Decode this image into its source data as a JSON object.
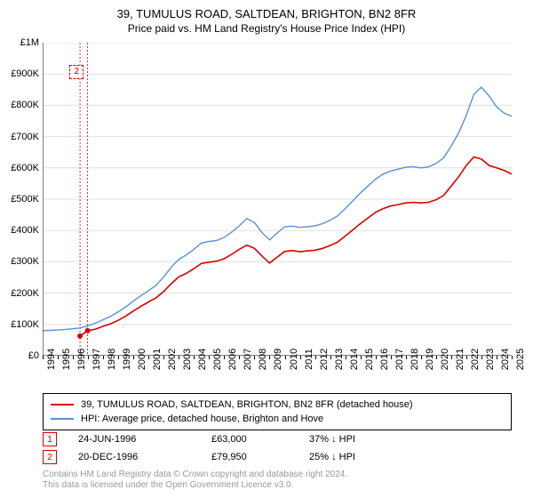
{
  "title": {
    "line1": "39, TUMULUS ROAD, SALTDEAN, BRIGHTON, BN2 8FR",
    "line2": "Price paid vs. HM Land Registry's House Price Index (HPI)"
  },
  "chart": {
    "type": "line",
    "background_color": "#ffffff",
    "grid_color": "#e0e0e0",
    "y": {
      "min": 0,
      "max": 1000000,
      "step": 100000,
      "ticks": [
        {
          "v": 0,
          "label": "£0"
        },
        {
          "v": 100000,
          "label": "£100K"
        },
        {
          "v": 200000,
          "label": "£200K"
        },
        {
          "v": 300000,
          "label": "£300K"
        },
        {
          "v": 400000,
          "label": "£400K"
        },
        {
          "v": 500000,
          "label": "£500K"
        },
        {
          "v": 600000,
          "label": "£600K"
        },
        {
          "v": 700000,
          "label": "£700K"
        },
        {
          "v": 800000,
          "label": "£800K"
        },
        {
          "v": 900000,
          "label": "£900K"
        },
        {
          "v": 1000000,
          "label": "£1M"
        }
      ]
    },
    "x": {
      "min": 1994,
      "max": 2025,
      "ticks": [
        1994,
        1995,
        1996,
        1997,
        1998,
        1999,
        2000,
        2001,
        2002,
        2003,
        2004,
        2005,
        2006,
        2007,
        2008,
        2009,
        2010,
        2011,
        2012,
        2013,
        2014,
        2015,
        2016,
        2017,
        2018,
        2019,
        2020,
        2021,
        2022,
        2023,
        2024,
        2025
      ]
    },
    "series": [
      {
        "name": "39, TUMULUS ROAD, SALTDEAN, BRIGHTON, BN2 8FR (detached house)",
        "color": "#d90000",
        "line_width": 1.6,
        "data": [
          [
            1996.47,
            63000
          ],
          [
            1996.97,
            79950
          ],
          [
            1997.5,
            85000
          ],
          [
            1998,
            94000
          ],
          [
            1998.5,
            102000
          ],
          [
            1999,
            113000
          ],
          [
            1999.5,
            127000
          ],
          [
            2000,
            143000
          ],
          [
            2000.5,
            158000
          ],
          [
            2001,
            172000
          ],
          [
            2001.5,
            185000
          ],
          [
            2002,
            205000
          ],
          [
            2002.5,
            230000
          ],
          [
            2003,
            252000
          ],
          [
            2003.5,
            263000
          ],
          [
            2004,
            278000
          ],
          [
            2004.5,
            295000
          ],
          [
            2005,
            299000
          ],
          [
            2005.5,
            302000
          ],
          [
            2006,
            310000
          ],
          [
            2006.5,
            324000
          ],
          [
            2007,
            340000
          ],
          [
            2007.5,
            353000
          ],
          [
            2008,
            343000
          ],
          [
            2008.5,
            318000
          ],
          [
            2009,
            296000
          ],
          [
            2009.5,
            315000
          ],
          [
            2010,
            333000
          ],
          [
            2010.5,
            336000
          ],
          [
            2011,
            332000
          ],
          [
            2011.5,
            335000
          ],
          [
            2012,
            337000
          ],
          [
            2012.5,
            343000
          ],
          [
            2013,
            352000
          ],
          [
            2013.5,
            363000
          ],
          [
            2014,
            382000
          ],
          [
            2014.5,
            402000
          ],
          [
            2015,
            422000
          ],
          [
            2015.5,
            440000
          ],
          [
            2016,
            458000
          ],
          [
            2016.5,
            470000
          ],
          [
            2017,
            478000
          ],
          [
            2017.5,
            483000
          ],
          [
            2018,
            488000
          ],
          [
            2018.5,
            490000
          ],
          [
            2019,
            488000
          ],
          [
            2019.5,
            490000
          ],
          [
            2020,
            498000
          ],
          [
            2020.5,
            512000
          ],
          [
            2021,
            542000
          ],
          [
            2021.5,
            572000
          ],
          [
            2022,
            608000
          ],
          [
            2022.5,
            635000
          ],
          [
            2023,
            628000
          ],
          [
            2023.5,
            608000
          ],
          [
            2024,
            600000
          ],
          [
            2024.5,
            592000
          ],
          [
            2025,
            580000
          ]
        ]
      },
      {
        "name": "HPI: Average price, detached house, Brighton and Hove",
        "color": "#5b8fd6",
        "line_width": 1.4,
        "data": [
          [
            1994,
            80000
          ],
          [
            1994.5,
            81000
          ],
          [
            1995,
            82000
          ],
          [
            1995.5,
            84000
          ],
          [
            1996,
            86000
          ],
          [
            1996.5,
            89000
          ],
          [
            1997,
            96000
          ],
          [
            1997.5,
            104000
          ],
          [
            1998,
            115000
          ],
          [
            1998.5,
            126000
          ],
          [
            1999,
            140000
          ],
          [
            1999.5,
            156000
          ],
          [
            2000,
            175000
          ],
          [
            2000.5,
            192000
          ],
          [
            2001,
            208000
          ],
          [
            2001.5,
            225000
          ],
          [
            2002,
            252000
          ],
          [
            2002.5,
            283000
          ],
          [
            2003,
            308000
          ],
          [
            2003.5,
            322000
          ],
          [
            2004,
            340000
          ],
          [
            2004.5,
            360000
          ],
          [
            2005,
            365000
          ],
          [
            2005.5,
            368000
          ],
          [
            2006,
            378000
          ],
          [
            2006.5,
            395000
          ],
          [
            2007,
            415000
          ],
          [
            2007.5,
            438000
          ],
          [
            2008,
            425000
          ],
          [
            2008.5,
            393000
          ],
          [
            2009,
            370000
          ],
          [
            2009.5,
            392000
          ],
          [
            2010,
            412000
          ],
          [
            2010.5,
            414000
          ],
          [
            2011,
            410000
          ],
          [
            2011.5,
            412000
          ],
          [
            2012,
            415000
          ],
          [
            2012.5,
            422000
          ],
          [
            2013,
            433000
          ],
          [
            2013.5,
            447000
          ],
          [
            2014,
            470000
          ],
          [
            2014.5,
            495000
          ],
          [
            2015,
            520000
          ],
          [
            2015.5,
            542000
          ],
          [
            2016,
            564000
          ],
          [
            2016.5,
            580000
          ],
          [
            2017,
            590000
          ],
          [
            2017.5,
            596000
          ],
          [
            2018,
            602000
          ],
          [
            2018.5,
            604000
          ],
          [
            2019,
            600000
          ],
          [
            2019.5,
            603000
          ],
          [
            2020,
            614000
          ],
          [
            2020.5,
            632000
          ],
          [
            2021,
            670000
          ],
          [
            2021.5,
            712000
          ],
          [
            2022,
            768000
          ],
          [
            2022.5,
            835000
          ],
          [
            2023,
            858000
          ],
          [
            2023.5,
            830000
          ],
          [
            2024,
            795000
          ],
          [
            2024.5,
            775000
          ],
          [
            2025,
            765000
          ]
        ]
      }
    ],
    "sale_markers": [
      {
        "num": "1",
        "color": "#d90000",
        "x": 1996.47,
        "y": 63000
      },
      {
        "num": "2",
        "color": "#d90000",
        "x": 1996.97,
        "y": 79950
      }
    ],
    "marker_vlines": [
      {
        "x": 1996.47,
        "color": "#d90000"
      },
      {
        "x": 1996.97,
        "color": "#d90000"
      }
    ],
    "marker_labels_box": {
      "x": 1996.2,
      "top_y": 930000
    }
  },
  "legend": {
    "items": [
      {
        "color": "#d90000",
        "label": "39, TUMULUS ROAD, SALTDEAN, BRIGHTON, BN2 8FR (detached house)"
      },
      {
        "color": "#5b8fd6",
        "label": "HPI: Average price, detached house, Brighton and Hove"
      }
    ]
  },
  "sales": [
    {
      "num": "1",
      "color": "#d90000",
      "date": "24-JUN-1996",
      "price": "£63,000",
      "pct": "37% ↓ HPI"
    },
    {
      "num": "2",
      "color": "#d90000",
      "date": "20-DEC-1996",
      "price": "£79,950",
      "pct": "25% ↓ HPI"
    }
  ],
  "license": {
    "line1": "Contains HM Land Registry data © Crown copyright and database right 2024.",
    "line2": "This data is licensed under the Open Government Licence v3.0."
  }
}
